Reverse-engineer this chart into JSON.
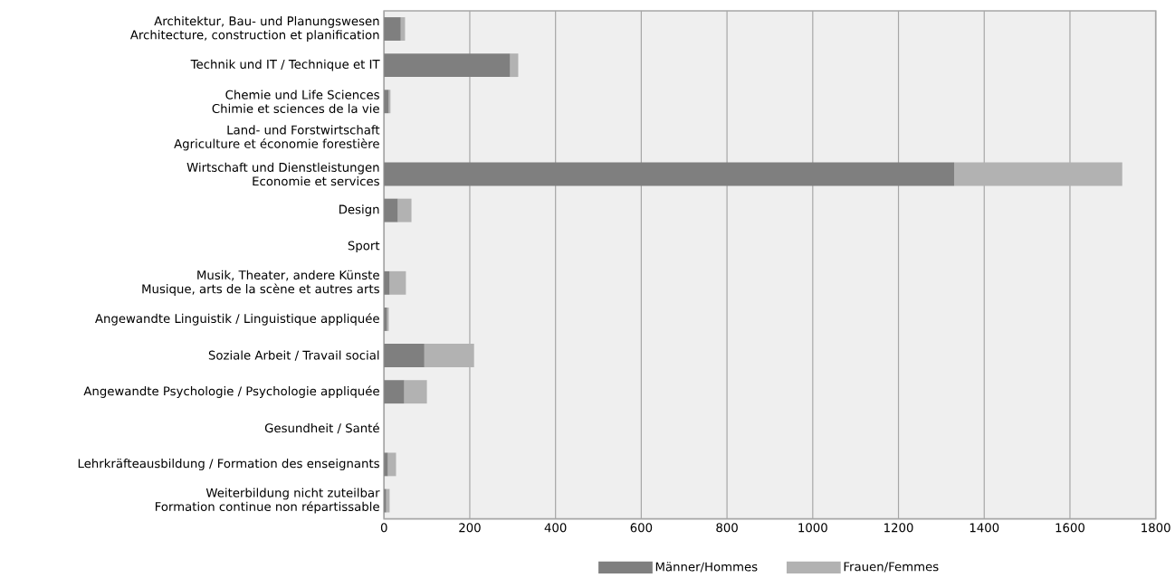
{
  "chart_data": {
    "type": "bar",
    "orientation": "horizontal",
    "stacked": true,
    "categories": [
      "Architektur, Bau- und Planungswesen\nArchitecture, construction et planification",
      "Technik und IT / Technique et IT",
      "Chemie und Life Sciences\nChimie et sciences de la vie",
      "Land- und Forstwirtschaft\nAgriculture et économie forestière",
      "Wirtschaft und Dienstleistungen\nEconomie et services",
      "Design",
      "Sport",
      "Musik, Theater, andere Künste\nMusique, arts de la scène et autres arts",
      "Angewandte Linguistik / Linguistique appliquée",
      "Soziale Arbeit / Travail social",
      "Angewandte Psychologie / Psychologie appliquée",
      "Gesundheit / Santé",
      "Lehrkräfteausbildung  / Formation des enseignants",
      "Weiterbildung nicht zuteilbar\nFormation continue non répartissable"
    ],
    "series": [
      {
        "name": "Männer/Hommes",
        "color": "#7f7f7f",
        "values": [
          39,
          294,
          11,
          0,
          1330,
          32,
          0,
          13,
          7,
          94,
          47,
          0,
          9,
          5
        ]
      },
      {
        "name": "Frauen/Femmes",
        "color": "#b2b2b2",
        "values": [
          10,
          19,
          4,
          0,
          392,
          32,
          0,
          38,
          4,
          116,
          53,
          0,
          19,
          8
        ]
      }
    ],
    "xlim": [
      0,
      1800
    ],
    "xticks": [
      0,
      200,
      400,
      600,
      800,
      1000,
      1200,
      1400,
      1600,
      1800
    ],
    "grid": "x",
    "legend": "bottom"
  }
}
